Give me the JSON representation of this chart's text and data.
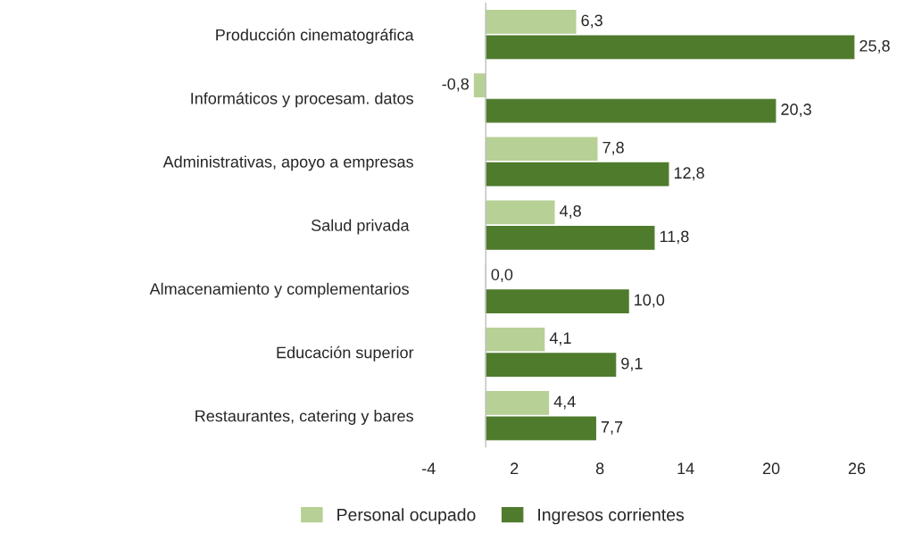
{
  "chart_data": {
    "type": "bar",
    "orientation": "horizontal",
    "categories": [
      "Producción cinematográfica",
      "Informáticos y procesam. datos",
      "Administrativas, apoyo a empresas",
      "Salud privada ",
      "Almacenamiento y complementarios ",
      "Educación superior",
      "Restaurantes, catering y bares"
    ],
    "series": [
      {
        "name": "Personal ocupado",
        "color": "#b7d095",
        "values": [
          6.3,
          -0.8,
          7.8,
          4.8,
          0.0,
          4.1,
          4.4
        ],
        "value_labels": [
          "6,3",
          "-0,8",
          "7,8",
          "4,8",
          "0,0",
          "4,1",
          "4,4"
        ]
      },
      {
        "name": "Ingresos corrientes",
        "color": "#4f7b2c",
        "values": [
          25.8,
          20.3,
          12.8,
          11.8,
          10.0,
          9.1,
          7.7
        ],
        "value_labels": [
          "25,8",
          "20,3",
          "12,8",
          "11,8",
          "10,0",
          "9,1",
          "7,7"
        ]
      }
    ],
    "xlim": [
      -4,
      26
    ],
    "xticks": [
      -4,
      2,
      8,
      14,
      20,
      26
    ],
    "grid": false,
    "legend": "bottom"
  }
}
